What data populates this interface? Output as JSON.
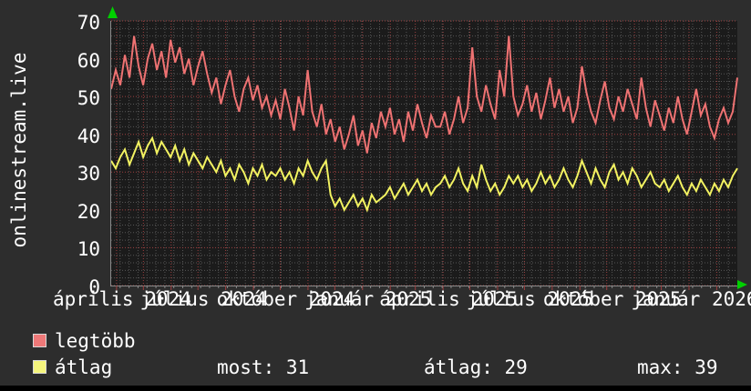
{
  "branding": {
    "site": "onlinestream.live"
  },
  "legend": [
    {
      "label": "legtöbb",
      "color": "#ee7878"
    },
    {
      "label": "átlag",
      "color": "#f5f57d"
    }
  ],
  "stats": [
    {
      "label": "most",
      "value": 31,
      "text": "most: 31"
    },
    {
      "label": "átlag",
      "value": 29,
      "text": "átlag: 29"
    },
    {
      "label": "max",
      "value": 39,
      "text": "max: 39"
    }
  ],
  "colors": {
    "background": "#2d2d2d",
    "plot_background": "#1b1b1b",
    "grid_major": "#9e4040",
    "grid_minor": "#565656",
    "axis": "#8a8a8a",
    "text": "#ffffff",
    "arrow": "#00d000",
    "bottom_strip": "#000000",
    "series_red": "#ee7272",
    "series_yellow": "#f2f261"
  },
  "chart_data": {
    "type": "line",
    "title": "",
    "xlabel": "",
    "ylabel": "",
    "ylim": [
      0,
      70
    ],
    "yticks": [
      0,
      10,
      20,
      30,
      40,
      50,
      60,
      70
    ],
    "y_minor_step": 2,
    "grid": true,
    "legend_position": "bottom-left",
    "total_days": 700,
    "x_minor_step_days": 10,
    "month_ticks": [
      {
        "day": 6,
        "label": "április 2024"
      },
      {
        "day": 36
      },
      {
        "day": 67
      },
      {
        "day": 97,
        "label": "július 2024"
      },
      {
        "day": 128
      },
      {
        "day": 159
      },
      {
        "day": 189,
        "label": "október 2024"
      },
      {
        "day": 220
      },
      {
        "day": 250
      },
      {
        "day": 281,
        "label": "január 2025"
      },
      {
        "day": 312
      },
      {
        "day": 340
      },
      {
        "day": 371,
        "label": "április 2025"
      },
      {
        "day": 401
      },
      {
        "day": 432
      },
      {
        "day": 462,
        "label": "július 2025"
      },
      {
        "day": 493
      },
      {
        "day": 524
      },
      {
        "day": 554,
        "label": "október 2025"
      },
      {
        "day": 585
      },
      {
        "day": 615
      },
      {
        "day": 646,
        "label": "január 2026"
      },
      {
        "day": 677
      }
    ],
    "series": [
      {
        "name": "legtöbb",
        "color": "#ee7272",
        "values": [
          52,
          57,
          53,
          61,
          55,
          66,
          58,
          53,
          60,
          64,
          57,
          62,
          55,
          65,
          59,
          63,
          56,
          60,
          53,
          58,
          62,
          56,
          51,
          55,
          48,
          53,
          57,
          50,
          46,
          52,
          55,
          49,
          53,
          47,
          50,
          45,
          49,
          44,
          52,
          47,
          41,
          50,
          45,
          57,
          46,
          42,
          48,
          40,
          44,
          38,
          42,
          36,
          40,
          45,
          37,
          41,
          35,
          43,
          39,
          46,
          42,
          47,
          40,
          44,
          38,
          46,
          41,
          48,
          43,
          39,
          45,
          42,
          42,
          46,
          40,
          44,
          50,
          43,
          47,
          63,
          50,
          46,
          53,
          48,
          44,
          57,
          50,
          66,
          50,
          45,
          48,
          53,
          46,
          51,
          44,
          49,
          55,
          47,
          52,
          46,
          50,
          43,
          47,
          58,
          51,
          46,
          43,
          49,
          54,
          47,
          44,
          50,
          46,
          52,
          48,
          44,
          55,
          47,
          42,
          49,
          45,
          41,
          47,
          43,
          50,
          44,
          40,
          46,
          52,
          45,
          48,
          42,
          39,
          44,
          47,
          43,
          46,
          55
        ]
      },
      {
        "name": "átlag",
        "color": "#f2f261",
        "values": [
          33,
          31,
          34,
          36,
          32,
          35,
          38,
          34,
          37,
          39,
          35,
          38,
          36,
          34,
          37,
          33,
          36,
          32,
          35,
          33,
          31,
          34,
          32,
          30,
          33,
          29,
          31,
          28,
          32,
          30,
          27,
          31,
          29,
          32,
          28,
          30,
          29,
          31,
          28,
          30,
          27,
          31,
          29,
          33,
          30,
          28,
          31,
          33,
          24,
          21,
          23,
          20,
          22,
          24,
          21,
          23,
          20,
          24,
          22,
          23,
          24,
          26,
          23,
          25,
          27,
          24,
          26,
          28,
          25,
          27,
          24,
          26,
          27,
          29,
          26,
          28,
          31,
          27,
          25,
          29,
          26,
          32,
          28,
          25,
          27,
          24,
          26,
          29,
          27,
          29,
          26,
          28,
          25,
          27,
          30,
          27,
          29,
          26,
          28,
          31,
          28,
          26,
          29,
          33,
          30,
          27,
          31,
          28,
          26,
          30,
          32,
          28,
          30,
          27,
          31,
          29,
          26,
          28,
          30,
          27,
          26,
          28,
          25,
          27,
          29,
          26,
          24,
          27,
          25,
          28,
          26,
          24,
          27,
          25,
          28,
          26,
          29,
          31
        ]
      }
    ],
    "summary": {
      "most": 31,
      "átlag": 29,
      "max": 39
    }
  }
}
